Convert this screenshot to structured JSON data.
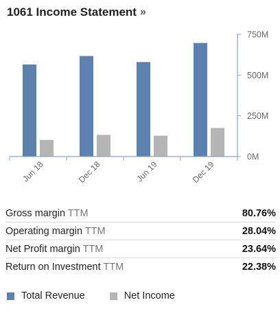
{
  "header": {
    "title": "1061 Income Statement",
    "more_glyph": "»"
  },
  "colors": {
    "revenue": "#5b82ae",
    "net_income": "#b5b5b5",
    "axis": "#8aa4bf",
    "tick_text": "#666666"
  },
  "chart_data": {
    "type": "bar",
    "categories": [
      "Jun 18",
      "Dec 18",
      "Jun 19",
      "Dec 19"
    ],
    "series": [
      {
        "name": "Total Revenue",
        "values": [
          565,
          617,
          580,
          697
        ],
        "color": "#5b82ae"
      },
      {
        "name": "Net Income",
        "values": [
          102,
          133,
          128,
          175
        ],
        "color": "#b5b5b5"
      }
    ],
    "ylim": [
      0,
      750
    ],
    "yticks": [
      0,
      250,
      500,
      750
    ],
    "ytick_labels": [
      "0M",
      "250M",
      "500M",
      "750M"
    ],
    "y_axis_side": "right",
    "grid": false,
    "legend": "bottom"
  },
  "stats": [
    {
      "label": "Gross margin",
      "suffix": "TTM",
      "value": "80.76%"
    },
    {
      "label": "Operating margin",
      "suffix": "TTM",
      "value": "28.04%"
    },
    {
      "label": "Net Profit margin",
      "suffix": "TTM",
      "value": "23.64%"
    },
    {
      "label": "Return on Investment",
      "suffix": "TTM",
      "value": "22.38%"
    }
  ],
  "legend": {
    "items": [
      {
        "label": "Total Revenue",
        "color": "#5b82ae"
      },
      {
        "label": "Net Income",
        "color": "#b5b5b5"
      }
    ]
  }
}
